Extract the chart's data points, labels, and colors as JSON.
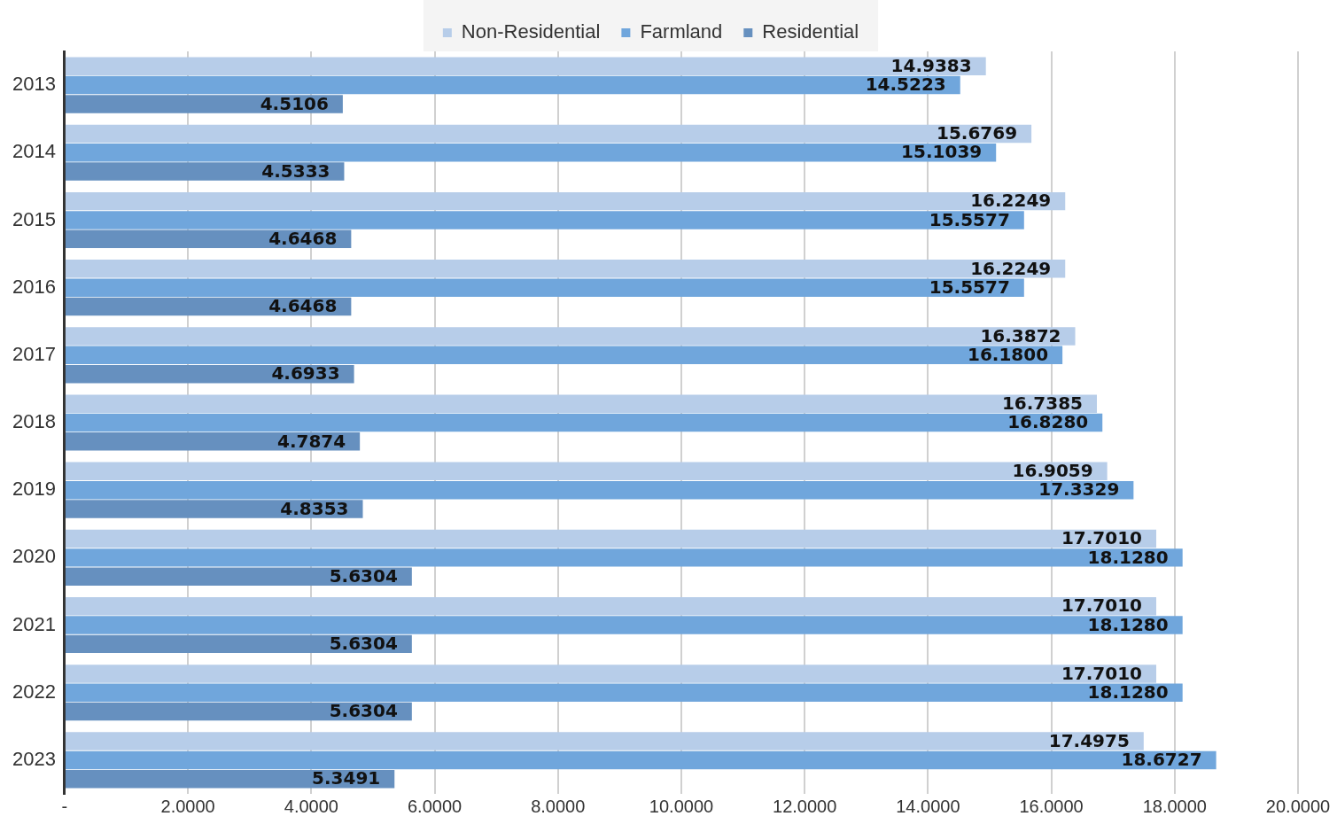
{
  "chart_data": {
    "type": "bar",
    "orientation": "horizontal",
    "categories": [
      "2013",
      "2014",
      "2015",
      "2016",
      "2017",
      "2018",
      "2019",
      "2020",
      "2021",
      "2022",
      "2023"
    ],
    "series": [
      {
        "name": "Non-Residential",
        "color": "#b7cde9",
        "values": [
          14.9383,
          15.6769,
          16.2249,
          16.2249,
          16.3872,
          16.7385,
          16.9059,
          17.701,
          17.701,
          17.701,
          17.4975
        ],
        "value_labels": [
          "14.9383",
          "15.6769",
          "16.2249",
          "16.2249",
          "16.3872",
          "16.7385",
          "16.9059",
          "17.7010",
          "17.7010",
          "17.7010",
          "17.4975"
        ]
      },
      {
        "name": "Farmland",
        "color": "#70a6dc",
        "values": [
          14.5223,
          15.1039,
          15.5577,
          15.5577,
          16.18,
          16.828,
          17.3329,
          18.128,
          18.128,
          18.128,
          18.6727
        ],
        "value_labels": [
          "14.5223",
          "15.1039",
          "15.5577",
          "15.5577",
          "16.1800",
          "16.8280",
          "17.3329",
          "18.1280",
          "18.1280",
          "18.1280",
          "18.6727"
        ]
      },
      {
        "name": "Residential",
        "color": "#6690bf",
        "values": [
          4.5106,
          4.5333,
          4.6468,
          4.6468,
          4.6933,
          4.7874,
          4.8353,
          5.6304,
          5.6304,
          5.6304,
          5.3491
        ],
        "value_labels": [
          "4.5106",
          "4.5333",
          "4.6468",
          "4.6468",
          "4.6933",
          "4.7874",
          "4.8353",
          "5.6304",
          "5.6304",
          "5.6304",
          "5.3491"
        ]
      }
    ],
    "xlim": [
      0,
      20
    ],
    "xticks": [
      {
        "value": 0,
        "label": "-"
      },
      {
        "value": 2,
        "label": "2.0000"
      },
      {
        "value": 4,
        "label": "4.0000"
      },
      {
        "value": 6,
        "label": "6.0000"
      },
      {
        "value": 8,
        "label": "8.0000"
      },
      {
        "value": 10,
        "label": "10.0000"
      },
      {
        "value": 12,
        "label": "12.0000"
      },
      {
        "value": 14,
        "label": "14.0000"
      },
      {
        "value": 16,
        "label": "16.0000"
      },
      {
        "value": 18,
        "label": "18.0000"
      },
      {
        "value": 20,
        "label": "20.0000"
      }
    ],
    "grid": "x",
    "legend": "top"
  }
}
